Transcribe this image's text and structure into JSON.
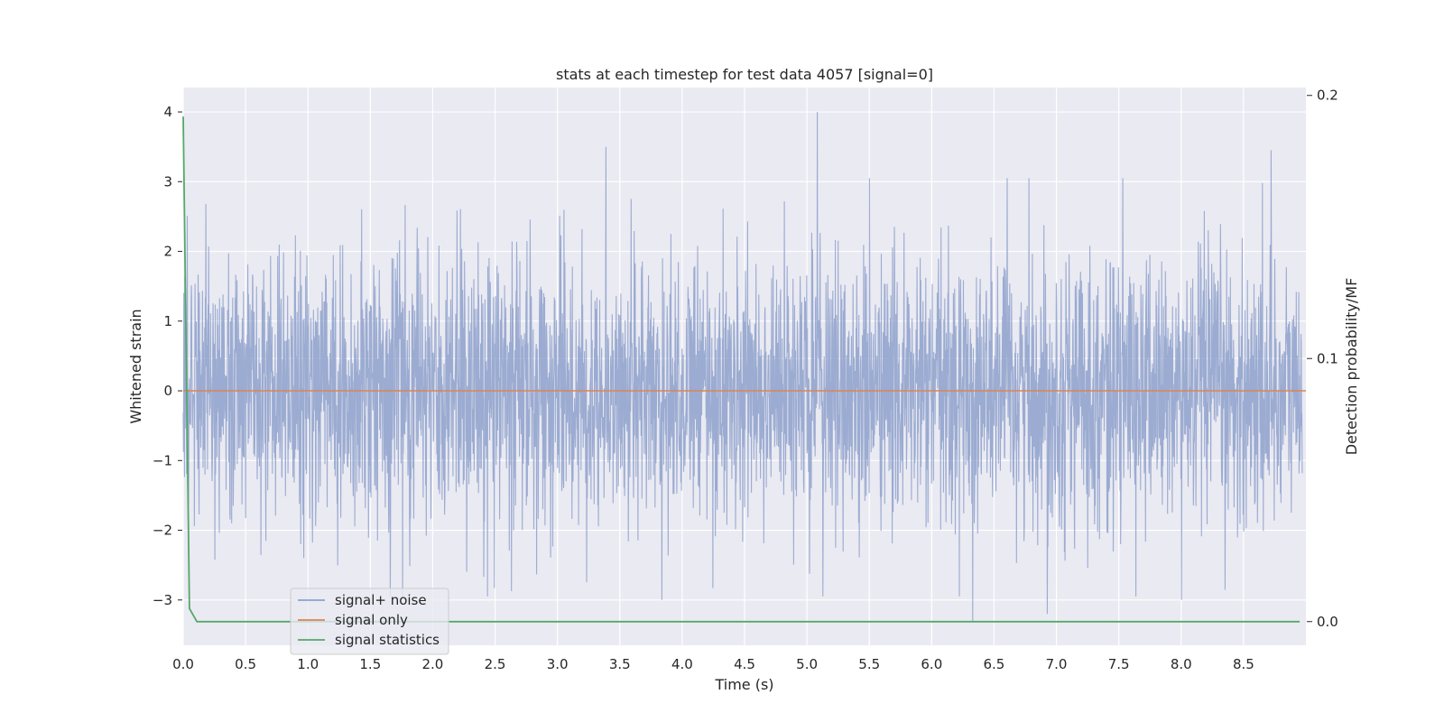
{
  "chart_data": {
    "type": "line",
    "title": "stats at each timestep for test data 4057 [signal=0]",
    "xlabel": "Time (s)",
    "ylabel": "Whitened strain",
    "y2label": "Detection probability/MF",
    "xlim": [
      0.0,
      9.0
    ],
    "ylim": [
      -3.65,
      4.35
    ],
    "y2lim": [
      -0.009,
      0.203
    ],
    "xticks": [
      "0.0",
      "0.5",
      "1.0",
      "1.5",
      "2.0",
      "2.5",
      "3.0",
      "3.5",
      "4.0",
      "4.5",
      "5.0",
      "5.5",
      "6.0",
      "6.5",
      "7.0",
      "7.5",
      "8.0",
      "8.5"
    ],
    "yticks": [
      "−3",
      "−2",
      "−1",
      "0",
      "1",
      "2",
      "3",
      "4"
    ],
    "y2ticks": [
      "0.0",
      "0.1",
      "0.2"
    ],
    "grid": true,
    "legend_position": "lower-left",
    "series": [
      {
        "name": "signal+ noise",
        "color": "#8da0cb",
        "description_values": "whitened strain noise, roughly uniform envelope between about -2.5 and 3.0 with peaks near 3.5 (t≈3.4) and 4.0 (t≈5.1), dips to about -3.3 (t≈6.35) and -3.2 (t≈6.95)",
        "noise_sigma": 1.0,
        "peaks": [
          {
            "x": 3.4,
            "y": 3.5
          },
          {
            "x": 5.1,
            "y": 4.0
          },
          {
            "x": 8.75,
            "y": 3.45
          },
          {
            "x": 6.35,
            "y": -3.3
          },
          {
            "x": 6.95,
            "y": -3.2
          },
          {
            "x": 3.85,
            "y": -3.0
          },
          {
            "x": 8.03,
            "y": -3.0
          }
        ]
      },
      {
        "name": "signal only",
        "color": "#dd8452",
        "x": [
          0.0,
          9.0
        ],
        "y": [
          0.0,
          0.0
        ]
      },
      {
        "name": "signal statistics",
        "color": "#55a868",
        "axis": "right",
        "x": [
          0.0,
          0.05,
          0.11,
          0.2,
          1.0,
          2.0,
          3.0,
          4.0,
          5.0,
          6.0,
          7.0,
          8.0,
          8.95
        ],
        "y": [
          0.192,
          0.005,
          0.0,
          0.0,
          0.0,
          0.0,
          0.0,
          0.0,
          0.0,
          0.0,
          0.0,
          0.0,
          0.0
        ]
      }
    ]
  }
}
